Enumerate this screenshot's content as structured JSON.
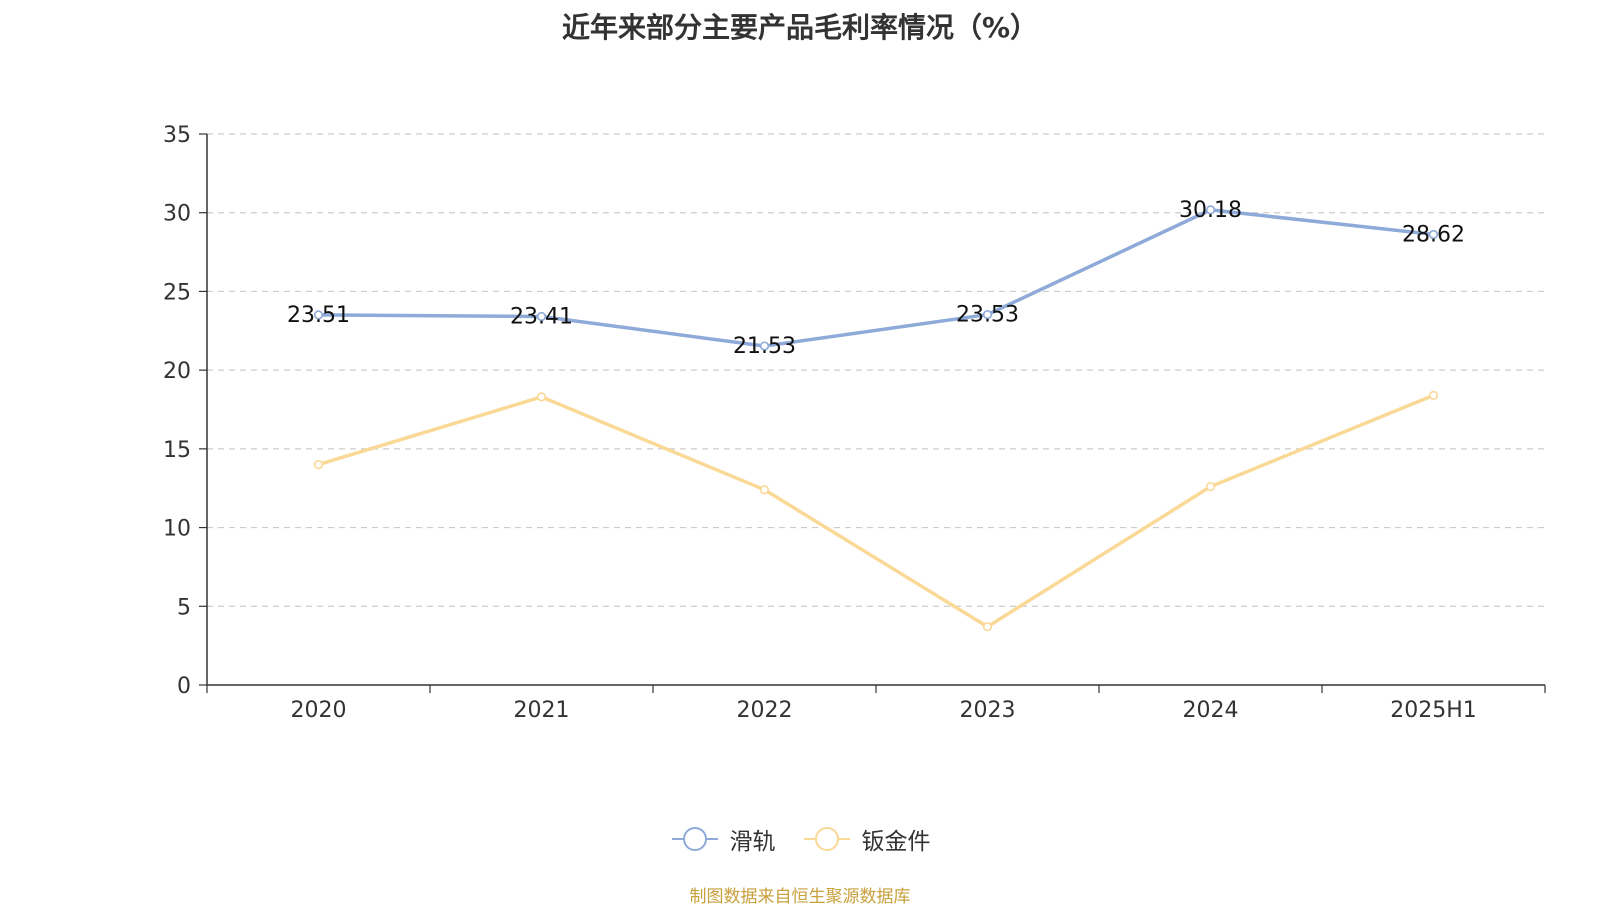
{
  "chart_data": {
    "type": "line",
    "title": "近年来部分主要产品毛利率情况（%）",
    "categories": [
      "2020",
      "2021",
      "2022",
      "2023",
      "2024",
      "2025H1"
    ],
    "ylim": [
      0,
      35
    ],
    "yticks": [
      0,
      5,
      10,
      15,
      20,
      25,
      30,
      35
    ],
    "grid": true,
    "legend_position": "bottom",
    "series": [
      {
        "name": "滑轨",
        "color": "#8eaad8",
        "values": [
          23.51,
          23.41,
          21.53,
          23.53,
          30.18,
          28.62
        ],
        "labels": [
          "23.51",
          "23.41",
          "21.53",
          "23.53",
          "30.18",
          "28.62"
        ],
        "show_labels": true
      },
      {
        "name": "钣金件",
        "color": "#fad896",
        "values": [
          14.0,
          18.3,
          12.4,
          3.7,
          12.6,
          18.4
        ],
        "show_labels": false
      }
    ]
  },
  "source_note": "制图数据来自恒生聚源数据库"
}
